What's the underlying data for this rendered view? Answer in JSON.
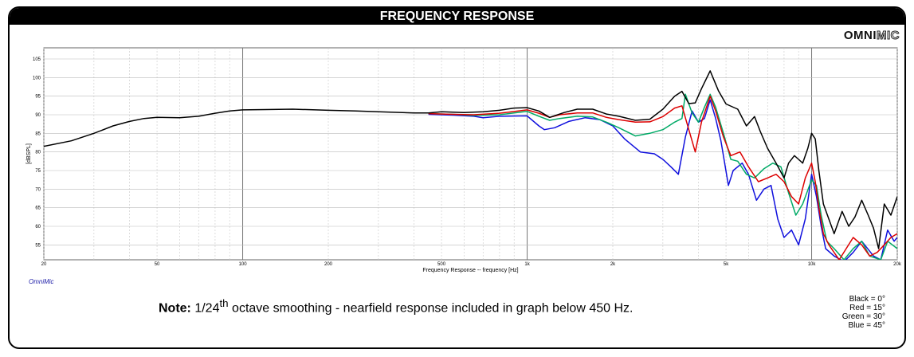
{
  "header": {
    "title": "FREQUENCY RESPONSE"
  },
  "logo": {
    "part1": "OMNI",
    "part2": "MIC"
  },
  "watermark": "OmniMic",
  "note": {
    "bold": "Note:",
    "pre": " 1/24",
    "sup": "th",
    "post": " octave smoothing - nearfield response included in graph below 450 Hz."
  },
  "legend": [
    "Black = 0°",
    "Red = 15°",
    "Green = 30°",
    "Blue = 45°"
  ],
  "chart_data": {
    "type": "line",
    "xlabel": "Frequency Response -- frequency [Hz]",
    "ylabel": "[dBSPL]",
    "x_scale": "log",
    "xlim": [
      20,
      20000
    ],
    "ylim": [
      51,
      108
    ],
    "grid": true,
    "x_tick_labels": [
      {
        "v": 20,
        "t": "20"
      },
      {
        "v": 50,
        "t": "50"
      },
      {
        "v": 100,
        "t": "100"
      },
      {
        "v": 200,
        "t": "200"
      },
      {
        "v": 500,
        "t": "500"
      },
      {
        "v": 1000,
        "t": "1k"
      },
      {
        "v": 2000,
        "t": "2k"
      },
      {
        "v": 5000,
        "t": "5k"
      },
      {
        "v": 10000,
        "t": "10k"
      },
      {
        "v": 20000,
        "t": "20k"
      }
    ],
    "y_ticks": [
      55,
      60,
      65,
      70,
      75,
      80,
      85,
      90,
      95,
      100,
      105
    ],
    "series": [
      {
        "name": "Black = 0°",
        "color": "#000000",
        "points": [
          [
            20,
            81.5
          ],
          [
            25,
            83
          ],
          [
            30,
            85
          ],
          [
            35,
            87
          ],
          [
            40,
            88.2
          ],
          [
            45,
            89
          ],
          [
            50,
            89.3
          ],
          [
            60,
            89.2
          ],
          [
            70,
            89.6
          ],
          [
            80,
            90.4
          ],
          [
            90,
            91
          ],
          [
            100,
            91.3
          ],
          [
            120,
            91.4
          ],
          [
            150,
            91.5
          ],
          [
            200,
            91.2
          ],
          [
            250,
            91
          ],
          [
            300,
            90.8
          ],
          [
            400,
            90.5
          ],
          [
            450,
            90.5
          ],
          [
            500,
            90.8
          ],
          [
            600,
            90.6
          ],
          [
            700,
            90.8
          ],
          [
            800,
            91.2
          ],
          [
            900,
            91.8
          ],
          [
            1000,
            91.9
          ],
          [
            1100,
            91
          ],
          [
            1200,
            89.3
          ],
          [
            1350,
            90.6
          ],
          [
            1500,
            91.5
          ],
          [
            1700,
            91.5
          ],
          [
            1900,
            90.2
          ],
          [
            2100,
            89.6
          ],
          [
            2400,
            88.5
          ],
          [
            2700,
            88.8
          ],
          [
            3000,
            91.5
          ],
          [
            3300,
            95
          ],
          [
            3500,
            96.3
          ],
          [
            3700,
            93
          ],
          [
            3900,
            93.2
          ],
          [
            4100,
            97
          ],
          [
            4400,
            101.8
          ],
          [
            4700,
            96.5
          ],
          [
            5000,
            92.9
          ],
          [
            5500,
            91.5
          ],
          [
            5900,
            87
          ],
          [
            6300,
            89.5
          ],
          [
            6600,
            85.5
          ],
          [
            7000,
            81
          ],
          [
            7500,
            77
          ],
          [
            8000,
            73
          ],
          [
            8300,
            77
          ],
          [
            8700,
            79
          ],
          [
            9000,
            78
          ],
          [
            9300,
            77
          ],
          [
            9700,
            81
          ],
          [
            10000,
            85
          ],
          [
            10300,
            83.5
          ],
          [
            10600,
            75
          ],
          [
            11000,
            66
          ],
          [
            12000,
            58
          ],
          [
            12800,
            64
          ],
          [
            13500,
            60
          ],
          [
            14200,
            62.5
          ],
          [
            15000,
            67
          ],
          [
            15800,
            63
          ],
          [
            16500,
            59.5
          ],
          [
            17200,
            54
          ],
          [
            18000,
            66
          ],
          [
            19000,
            63
          ],
          [
            20000,
            68
          ]
        ]
      },
      {
        "name": "Red = 15°",
        "color": "#dd0000",
        "points": [
          [
            450,
            90.3
          ],
          [
            550,
            90.1
          ],
          [
            650,
            90
          ],
          [
            800,
            90.4
          ],
          [
            1000,
            91.3
          ],
          [
            1100,
            90.4
          ],
          [
            1200,
            89.3
          ],
          [
            1300,
            90
          ],
          [
            1500,
            90.5
          ],
          [
            1700,
            90.5
          ],
          [
            1900,
            89.3
          ],
          [
            2100,
            88.7
          ],
          [
            2400,
            88
          ],
          [
            2700,
            88.1
          ],
          [
            3000,
            89.5
          ],
          [
            3300,
            91.8
          ],
          [
            3500,
            92.4
          ],
          [
            3700,
            86
          ],
          [
            3900,
            80
          ],
          [
            4100,
            88
          ],
          [
            4400,
            95
          ],
          [
            4600,
            91
          ],
          [
            4900,
            84
          ],
          [
            5200,
            79
          ],
          [
            5600,
            80
          ],
          [
            6000,
            76
          ],
          [
            6500,
            72
          ],
          [
            7000,
            73
          ],
          [
            7500,
            74
          ],
          [
            8000,
            72
          ],
          [
            8500,
            68
          ],
          [
            9000,
            66
          ],
          [
            9500,
            73
          ],
          [
            10000,
            77
          ],
          [
            10300,
            72
          ],
          [
            10600,
            65
          ],
          [
            11000,
            58
          ],
          [
            11500,
            55
          ],
          [
            12500,
            51
          ],
          [
            14000,
            57
          ],
          [
            15000,
            55
          ],
          [
            16000,
            52
          ],
          [
            17000,
            53
          ],
          [
            18000,
            55
          ],
          [
            19000,
            57
          ],
          [
            20000,
            58
          ]
        ]
      },
      {
        "name": "Green = 30°",
        "color": "#00aa66",
        "points": [
          [
            450,
            90.3
          ],
          [
            550,
            90.1
          ],
          [
            650,
            89.8
          ],
          [
            800,
            90
          ],
          [
            1000,
            90.9
          ],
          [
            1100,
            89.6
          ],
          [
            1200,
            88.5
          ],
          [
            1300,
            89
          ],
          [
            1500,
            89.6
          ],
          [
            1700,
            89.4
          ],
          [
            1900,
            88
          ],
          [
            2100,
            86.5
          ],
          [
            2400,
            84.3
          ],
          [
            2700,
            85
          ],
          [
            3000,
            86
          ],
          [
            3300,
            88
          ],
          [
            3500,
            89
          ],
          [
            3600,
            95.5
          ],
          [
            3800,
            90.5
          ],
          [
            4000,
            88
          ],
          [
            4200,
            92
          ],
          [
            4400,
            95.5
          ],
          [
            4600,
            92
          ],
          [
            4900,
            85
          ],
          [
            5200,
            78
          ],
          [
            5500,
            77.5
          ],
          [
            5900,
            74
          ],
          [
            6300,
            73
          ],
          [
            6800,
            75.5
          ],
          [
            7300,
            77
          ],
          [
            7800,
            76
          ],
          [
            8300,
            69
          ],
          [
            8800,
            63
          ],
          [
            9300,
            66
          ],
          [
            10000,
            72.5
          ],
          [
            10400,
            71
          ],
          [
            10800,
            63
          ],
          [
            11300,
            56
          ],
          [
            12000,
            54
          ],
          [
            13000,
            51
          ],
          [
            14000,
            54
          ],
          [
            15000,
            56
          ],
          [
            16000,
            52
          ],
          [
            17500,
            51
          ],
          [
            18500,
            56
          ],
          [
            20000,
            54
          ]
        ]
      },
      {
        "name": "Blue = 45°",
        "color": "#1010dd",
        "points": [
          [
            450,
            90.1
          ],
          [
            550,
            89.9
          ],
          [
            650,
            89.6
          ],
          [
            700,
            89.2
          ],
          [
            800,
            89.6
          ],
          [
            1000,
            89.7
          ],
          [
            1100,
            87
          ],
          [
            1150,
            86
          ],
          [
            1250,
            86.5
          ],
          [
            1400,
            88.2
          ],
          [
            1600,
            89.2
          ],
          [
            1800,
            88.7
          ],
          [
            2000,
            87
          ],
          [
            2200,
            83.5
          ],
          [
            2500,
            80
          ],
          [
            2800,
            79.5
          ],
          [
            3000,
            78
          ],
          [
            3200,
            76
          ],
          [
            3400,
            74
          ],
          [
            3600,
            84
          ],
          [
            3800,
            91
          ],
          [
            4000,
            88
          ],
          [
            4200,
            89
          ],
          [
            4400,
            94
          ],
          [
            4600,
            89
          ],
          [
            4800,
            83
          ],
          [
            5100,
            71
          ],
          [
            5300,
            75
          ],
          [
            5700,
            77
          ],
          [
            6000,
            74
          ],
          [
            6400,
            67
          ],
          [
            6800,
            70
          ],
          [
            7200,
            71
          ],
          [
            7600,
            62
          ],
          [
            8000,
            57
          ],
          [
            8500,
            59
          ],
          [
            9000,
            55
          ],
          [
            9500,
            62
          ],
          [
            10000,
            74
          ],
          [
            10400,
            68
          ],
          [
            10800,
            60
          ],
          [
            11200,
            54
          ],
          [
            12000,
            52
          ],
          [
            13000,
            50.5
          ],
          [
            14000,
            53
          ],
          [
            15000,
            56
          ],
          [
            16500,
            52
          ],
          [
            17500,
            51
          ],
          [
            18500,
            59
          ],
          [
            19500,
            56
          ],
          [
            20000,
            57
          ]
        ]
      }
    ]
  }
}
